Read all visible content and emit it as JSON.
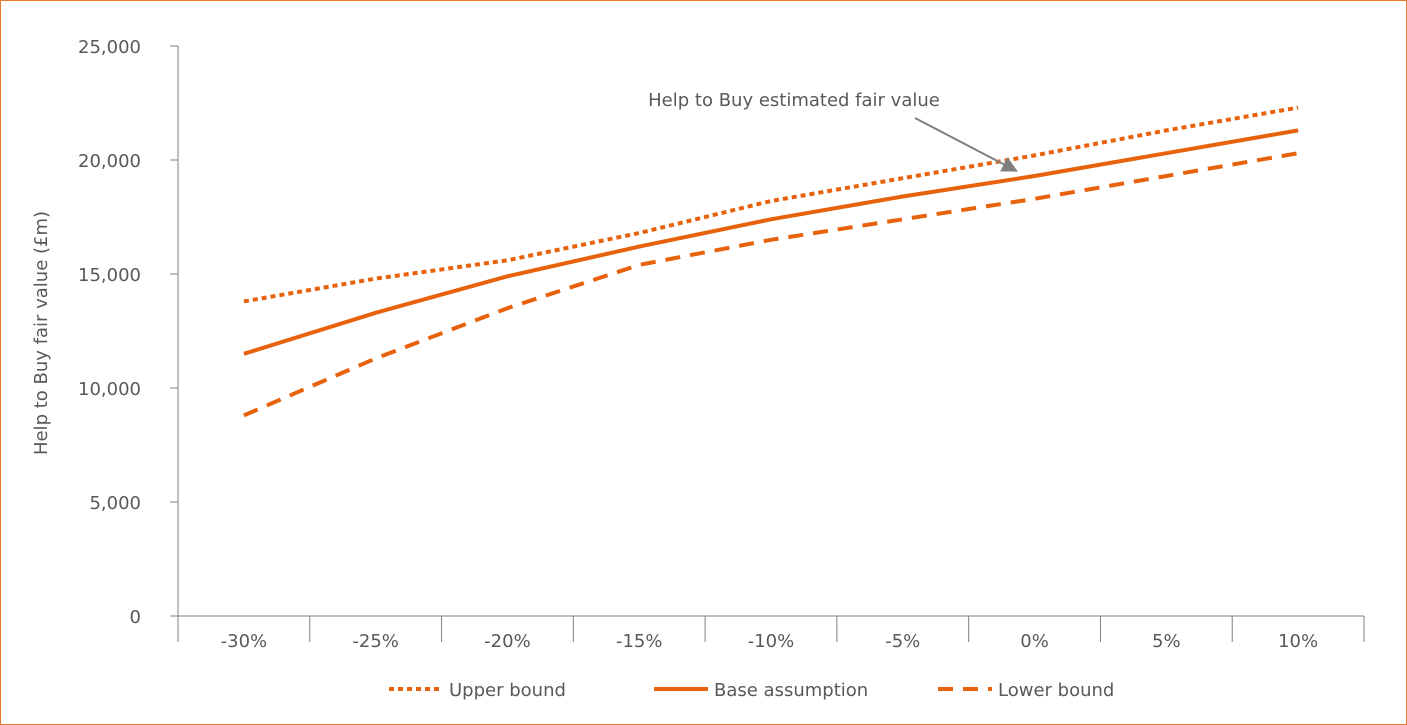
{
  "chart_data": {
    "type": "line",
    "title": "",
    "xlabel": "",
    "ylabel": "Help to Buy fair value (£m)",
    "categories": [
      "-30%",
      "-25%",
      "-20%",
      "-15%",
      "-10%",
      "-5%",
      "0%",
      "5%",
      "10%"
    ],
    "ylim": [
      0,
      25000
    ],
    "yticks": [
      "0",
      "5,000",
      "10,000",
      "15,000",
      "20,000",
      "25,000"
    ],
    "yticks_values": [
      0,
      5000,
      10000,
      15000,
      20000,
      25000
    ],
    "grid": false,
    "legend_position": "bottom",
    "series": [
      {
        "name": "Upper bound",
        "style": "dotted",
        "values": [
          13800,
          14800,
          15600,
          16800,
          18200,
          19200,
          20200,
          21300,
          22300
        ]
      },
      {
        "name": "Base assumption",
        "style": "solid",
        "values": [
          11500,
          13300,
          14900,
          16200,
          17400,
          18400,
          19300,
          20300,
          21300
        ]
      },
      {
        "name": "Lower bound",
        "style": "dashed",
        "values": [
          8800,
          11300,
          13500,
          15400,
          16500,
          17400,
          18300,
          19300,
          20300
        ]
      }
    ],
    "annotations": [
      {
        "text": "Help to Buy estimated fair value",
        "target_category": "0%",
        "target_value": 19300
      }
    ]
  },
  "colors": {
    "line": "#e8620c",
    "axis": "#7f7f7f",
    "text": "#595959",
    "frame": "#e8792f",
    "arrow": "#7f7f7f"
  }
}
